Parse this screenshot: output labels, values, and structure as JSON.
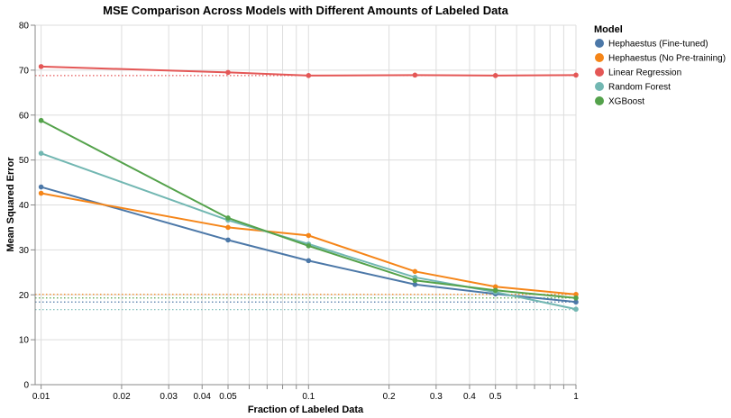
{
  "chart_data": {
    "type": "line",
    "title": "MSE Comparison Across Models with Different Amounts of Labeled Data",
    "xlabel": "Fraction of Labeled Data",
    "ylabel": "Mean Squared Error",
    "x_scale": "log",
    "xlim": [
      0.0095,
      1
    ],
    "ylim": [
      0,
      80
    ],
    "grid": true,
    "x_ticks": [
      {
        "value": 0.01,
        "label": "0.01"
      },
      {
        "value": 0.02,
        "label": "0.02"
      },
      {
        "value": 0.03,
        "label": "0.03"
      },
      {
        "value": 0.04,
        "label": "0.04"
      },
      {
        "value": 0.05,
        "label": "0.05"
      },
      {
        "value": 0.1,
        "label": "0.1"
      },
      {
        "value": 0.2,
        "label": "0.2"
      },
      {
        "value": 0.3,
        "label": "0.3"
      },
      {
        "value": 0.4,
        "label": "0.4"
      },
      {
        "value": 0.5,
        "label": "0.5"
      },
      {
        "value": 1,
        "label": "1"
      }
    ],
    "x_minor_ticks": [
      0.06,
      0.07,
      0.08,
      0.09,
      0.6,
      0.7,
      0.8,
      0.9
    ],
    "y_ticks": [
      0,
      10,
      20,
      30,
      40,
      50,
      60,
      70,
      80
    ],
    "x": [
      0.01,
      0.05,
      0.1,
      0.25,
      0.5,
      1
    ],
    "series": [
      {
        "name": "Hephaestus (Fine-tuned)",
        "color": "#4c78a8",
        "values": [
          44.0,
          32.2,
          27.6,
          22.3,
          20.2,
          18.4
        ],
        "baseline": 18.4
      },
      {
        "name": "Hephaestus (No Pre-training)",
        "color": "#f58518",
        "values": [
          42.6,
          35.0,
          33.2,
          25.2,
          21.8,
          20.1
        ],
        "baseline": 20.1
      },
      {
        "name": "Linear Regression",
        "color": "#e45756",
        "values": [
          70.8,
          69.5,
          68.8,
          68.9,
          68.8,
          68.9
        ],
        "baseline": 68.8
      },
      {
        "name": "Random Forest",
        "color": "#72b7b2",
        "values": [
          51.5,
          36.6,
          31.3,
          23.9,
          20.6,
          16.8
        ],
        "baseline": 16.7
      },
      {
        "name": "XGBoost",
        "color": "#54a24b",
        "values": [
          58.8,
          37.1,
          30.9,
          23.2,
          21.0,
          19.3
        ],
        "baseline": 19.3
      }
    ],
    "legend": {
      "title": "Model",
      "position": "right"
    }
  }
}
